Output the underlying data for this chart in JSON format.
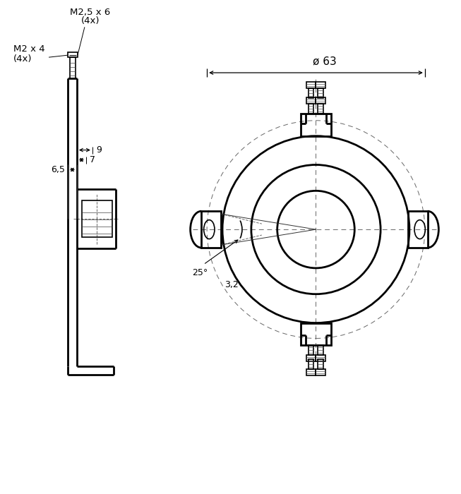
{
  "bg_color": "#ffffff",
  "line_color": "#000000",
  "fig_width": 6.53,
  "fig_height": 7.0,
  "annotations": {
    "m25x6": "M2,5 x 6",
    "m25x6_sub": "(4x)",
    "m2x4": "M2 x 4",
    "m2x4_sub": "(4x)",
    "dim_65": "6,5",
    "dim_7": "7",
    "dim_9": "9",
    "dim_25deg": "25°",
    "dim_32": "3,2",
    "dim_dia63": "ø 63"
  }
}
